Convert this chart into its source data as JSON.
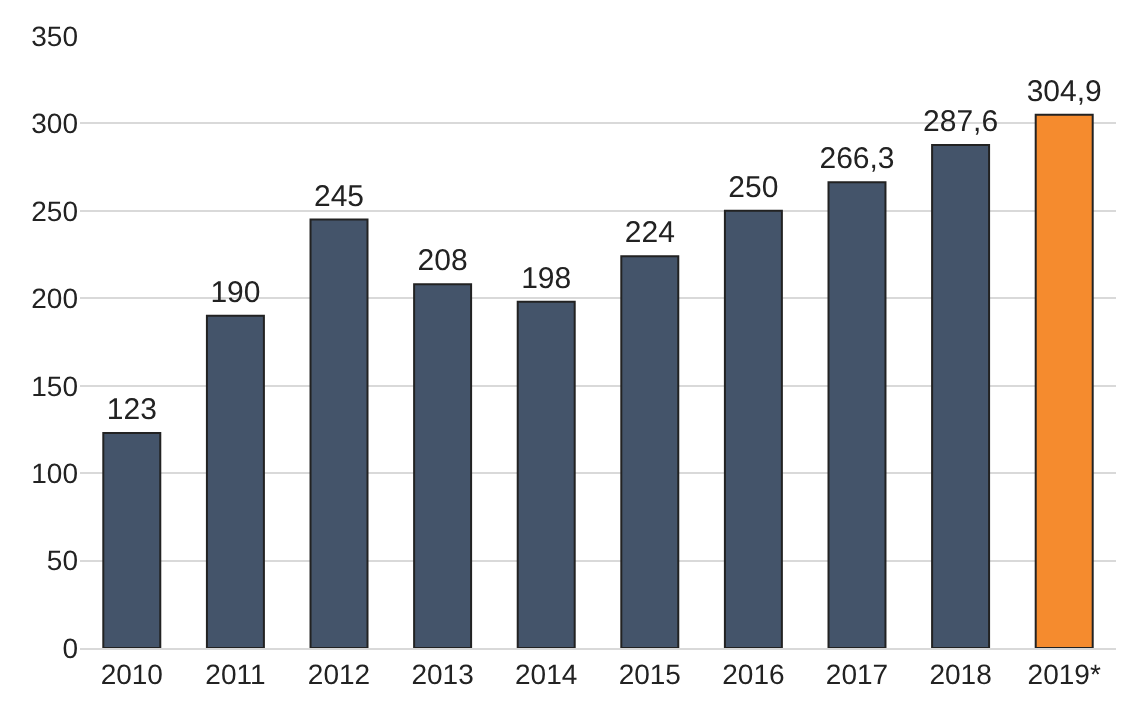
{
  "chart_data": {
    "type": "bar",
    "categories": [
      "2010",
      "2011",
      "2012",
      "2013",
      "2014",
      "2015",
      "2016",
      "2017",
      "2018",
      "2019*"
    ],
    "values": [
      123,
      190,
      245,
      208,
      198,
      224,
      250,
      266.3,
      287.6,
      304.9
    ],
    "colors": [
      "#44546a",
      "#44546a",
      "#44546a",
      "#44546a",
      "#44546a",
      "#44546a",
      "#44546a",
      "#44546a",
      "#44546a",
      "#f58b2e"
    ],
    "value_labels": [
      "123",
      "190",
      "245",
      "208",
      "198",
      "224",
      "250",
      "266,3",
      "287,6",
      "304,9"
    ],
    "ylim": [
      0,
      350
    ],
    "yticks": [
      0,
      50,
      100,
      150,
      200,
      250,
      300,
      350
    ],
    "grid": "y"
  }
}
